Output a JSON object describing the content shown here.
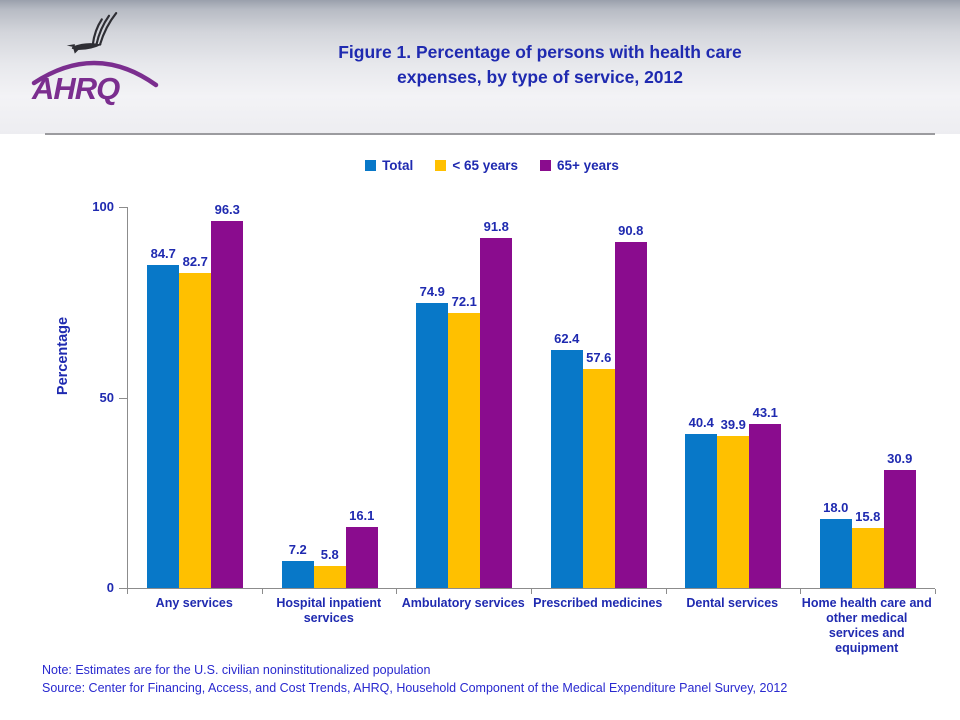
{
  "header": {
    "logo": {
      "acronym": "AHRQ"
    },
    "title": "Figure 1. Percentage of persons with health care expenses, by type of service, 2012"
  },
  "chart_data": {
    "type": "bar",
    "title": "Figure 1. Percentage of persons with health care expenses, by type of service, 2012",
    "xlabel": "",
    "ylabel": "Percentage",
    "ylim": [
      0,
      100
    ],
    "yticks": [
      0,
      50,
      100
    ],
    "grid": false,
    "legend_position": "top-center",
    "value_label_decimals": 1,
    "categories": [
      "Any services",
      "Hospital inpatient services",
      "Ambulatory services",
      "Prescribed medicines",
      "Dental services",
      "Home health care and other medical services and equipment"
    ],
    "series": [
      {
        "name": "Total",
        "color": "#0878C8",
        "values": [
          84.7,
          7.2,
          74.9,
          62.4,
          40.4,
          18.0
        ]
      },
      {
        "name": "< 65 years",
        "color": "#FFC000",
        "values": [
          82.7,
          5.8,
          72.1,
          57.6,
          39.9,
          15.8
        ]
      },
      {
        "name": "65+ years",
        "color": "#8A0C8E",
        "values": [
          96.3,
          16.1,
          91.8,
          90.8,
          43.1,
          30.9
        ]
      }
    ]
  },
  "footer": {
    "note": "Note: Estimates are for the U.S. civilian noninstitutionalized population",
    "source": "Source: Center for Financing, Access, and Cost Trends, AHRQ, Household Component of the Medical Expenditure Panel Survey, 2012"
  },
  "colors": {
    "title_text": "#1F2AB0",
    "footer_text": "#2929CF",
    "axis": "#8C8C8C",
    "divider": "#9B9B9F",
    "logo_purple": "#7B2E8F",
    "eagle": "#2E2E34"
  }
}
